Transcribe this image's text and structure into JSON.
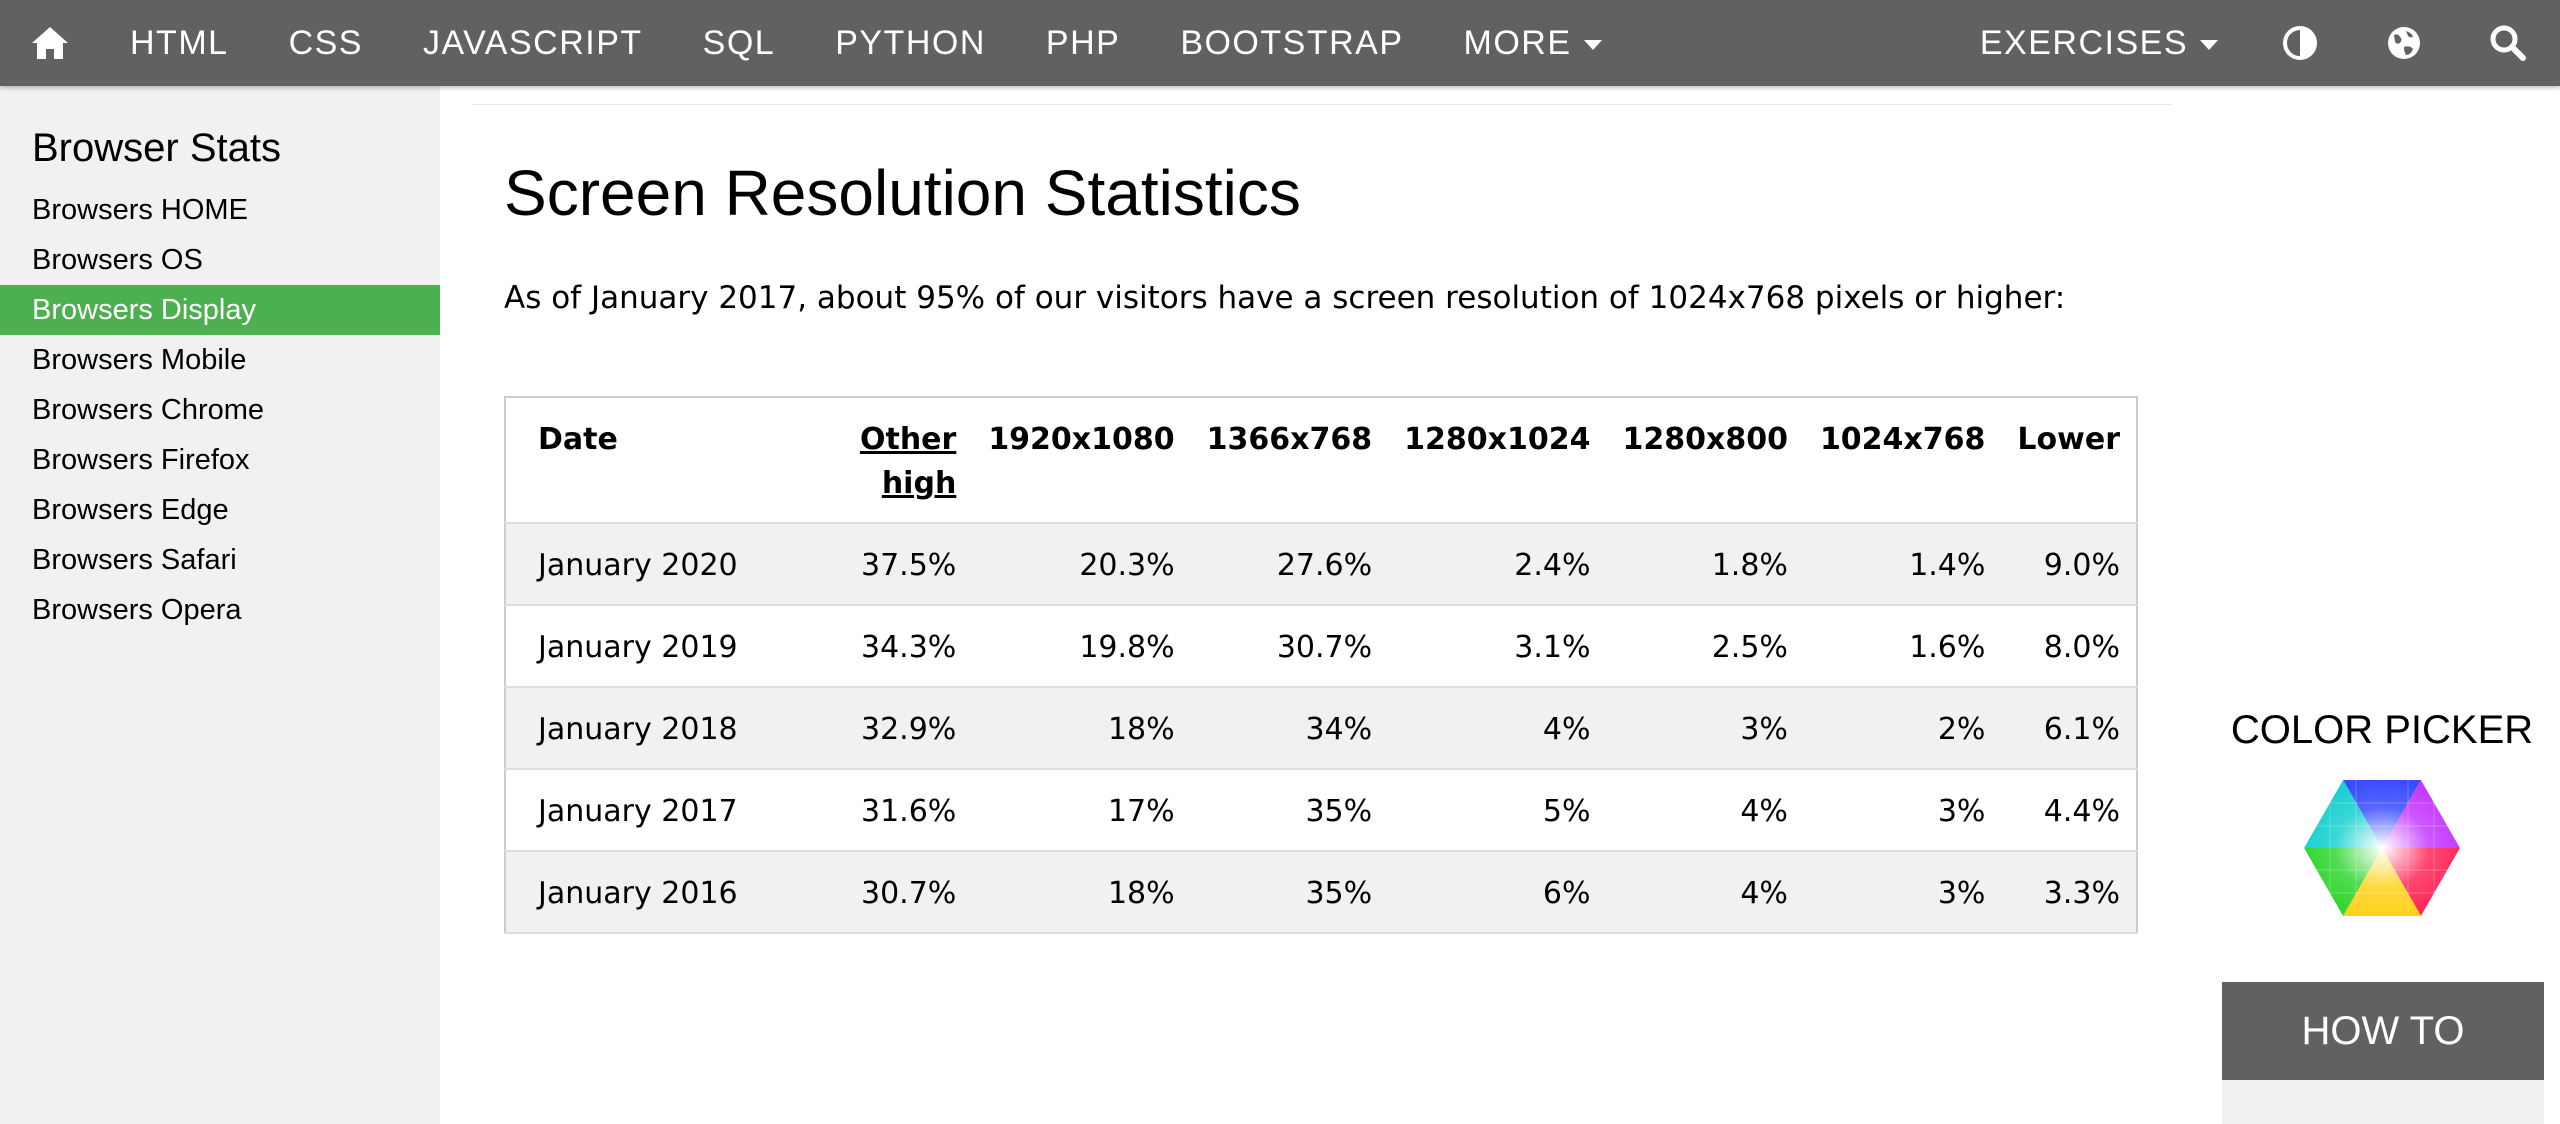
{
  "nav": {
    "items": [
      "HTML",
      "CSS",
      "JAVASCRIPT",
      "SQL",
      "PYTHON",
      "PHP",
      "BOOTSTRAP"
    ],
    "more": "MORE",
    "exercises": "EXERCISES",
    "icons": [
      "home-icon",
      "contrast-icon",
      "globe-icon",
      "search-icon"
    ]
  },
  "sidebar": {
    "title": "Browser Stats",
    "items": [
      {
        "label": "Browsers HOME"
      },
      {
        "label": "Browsers OS"
      },
      {
        "label": "Browsers Display",
        "active": true
      },
      {
        "label": "Browsers Mobile"
      },
      {
        "label": "Browsers Chrome"
      },
      {
        "label": "Browsers Firefox"
      },
      {
        "label": "Browsers Edge"
      },
      {
        "label": "Browsers Safari"
      },
      {
        "label": "Browsers Opera"
      }
    ],
    "active_color": "#4caf50"
  },
  "main": {
    "title": "Screen Resolution Statistics",
    "intro": "As of January 2017, about 95% of our visitors have a screen resolution of 1024x768 pixels or higher:",
    "table": {
      "headers": [
        "Date",
        "Other high",
        "1920x1080",
        "1366x768",
        "1280x1024",
        "1280x800",
        "1024x768",
        "Lower"
      ],
      "rows": [
        [
          "January 2020",
          "37.5%",
          "20.3%",
          "27.6%",
          "2.4%",
          "1.8%",
          "1.4%",
          "9.0%"
        ],
        [
          "January 2019",
          "34.3%",
          "19.8%",
          "30.7%",
          "3.1%",
          "2.5%",
          "1.6%",
          "8.0%"
        ],
        [
          "January 2018",
          "32.9%",
          "18%",
          "34%",
          "4%",
          "3%",
          "2%",
          "6.1%"
        ],
        [
          "January 2017",
          "31.6%",
          "17%",
          "35%",
          "5%",
          "4%",
          "3%",
          "4.4%"
        ],
        [
          "January 2016",
          "30.7%",
          "18%",
          "35%",
          "6%",
          "4%",
          "3%",
          "3.3%"
        ]
      ]
    }
  },
  "right": {
    "color_picker_title": "COLOR PICKER",
    "howto_label": "HOW TO"
  }
}
